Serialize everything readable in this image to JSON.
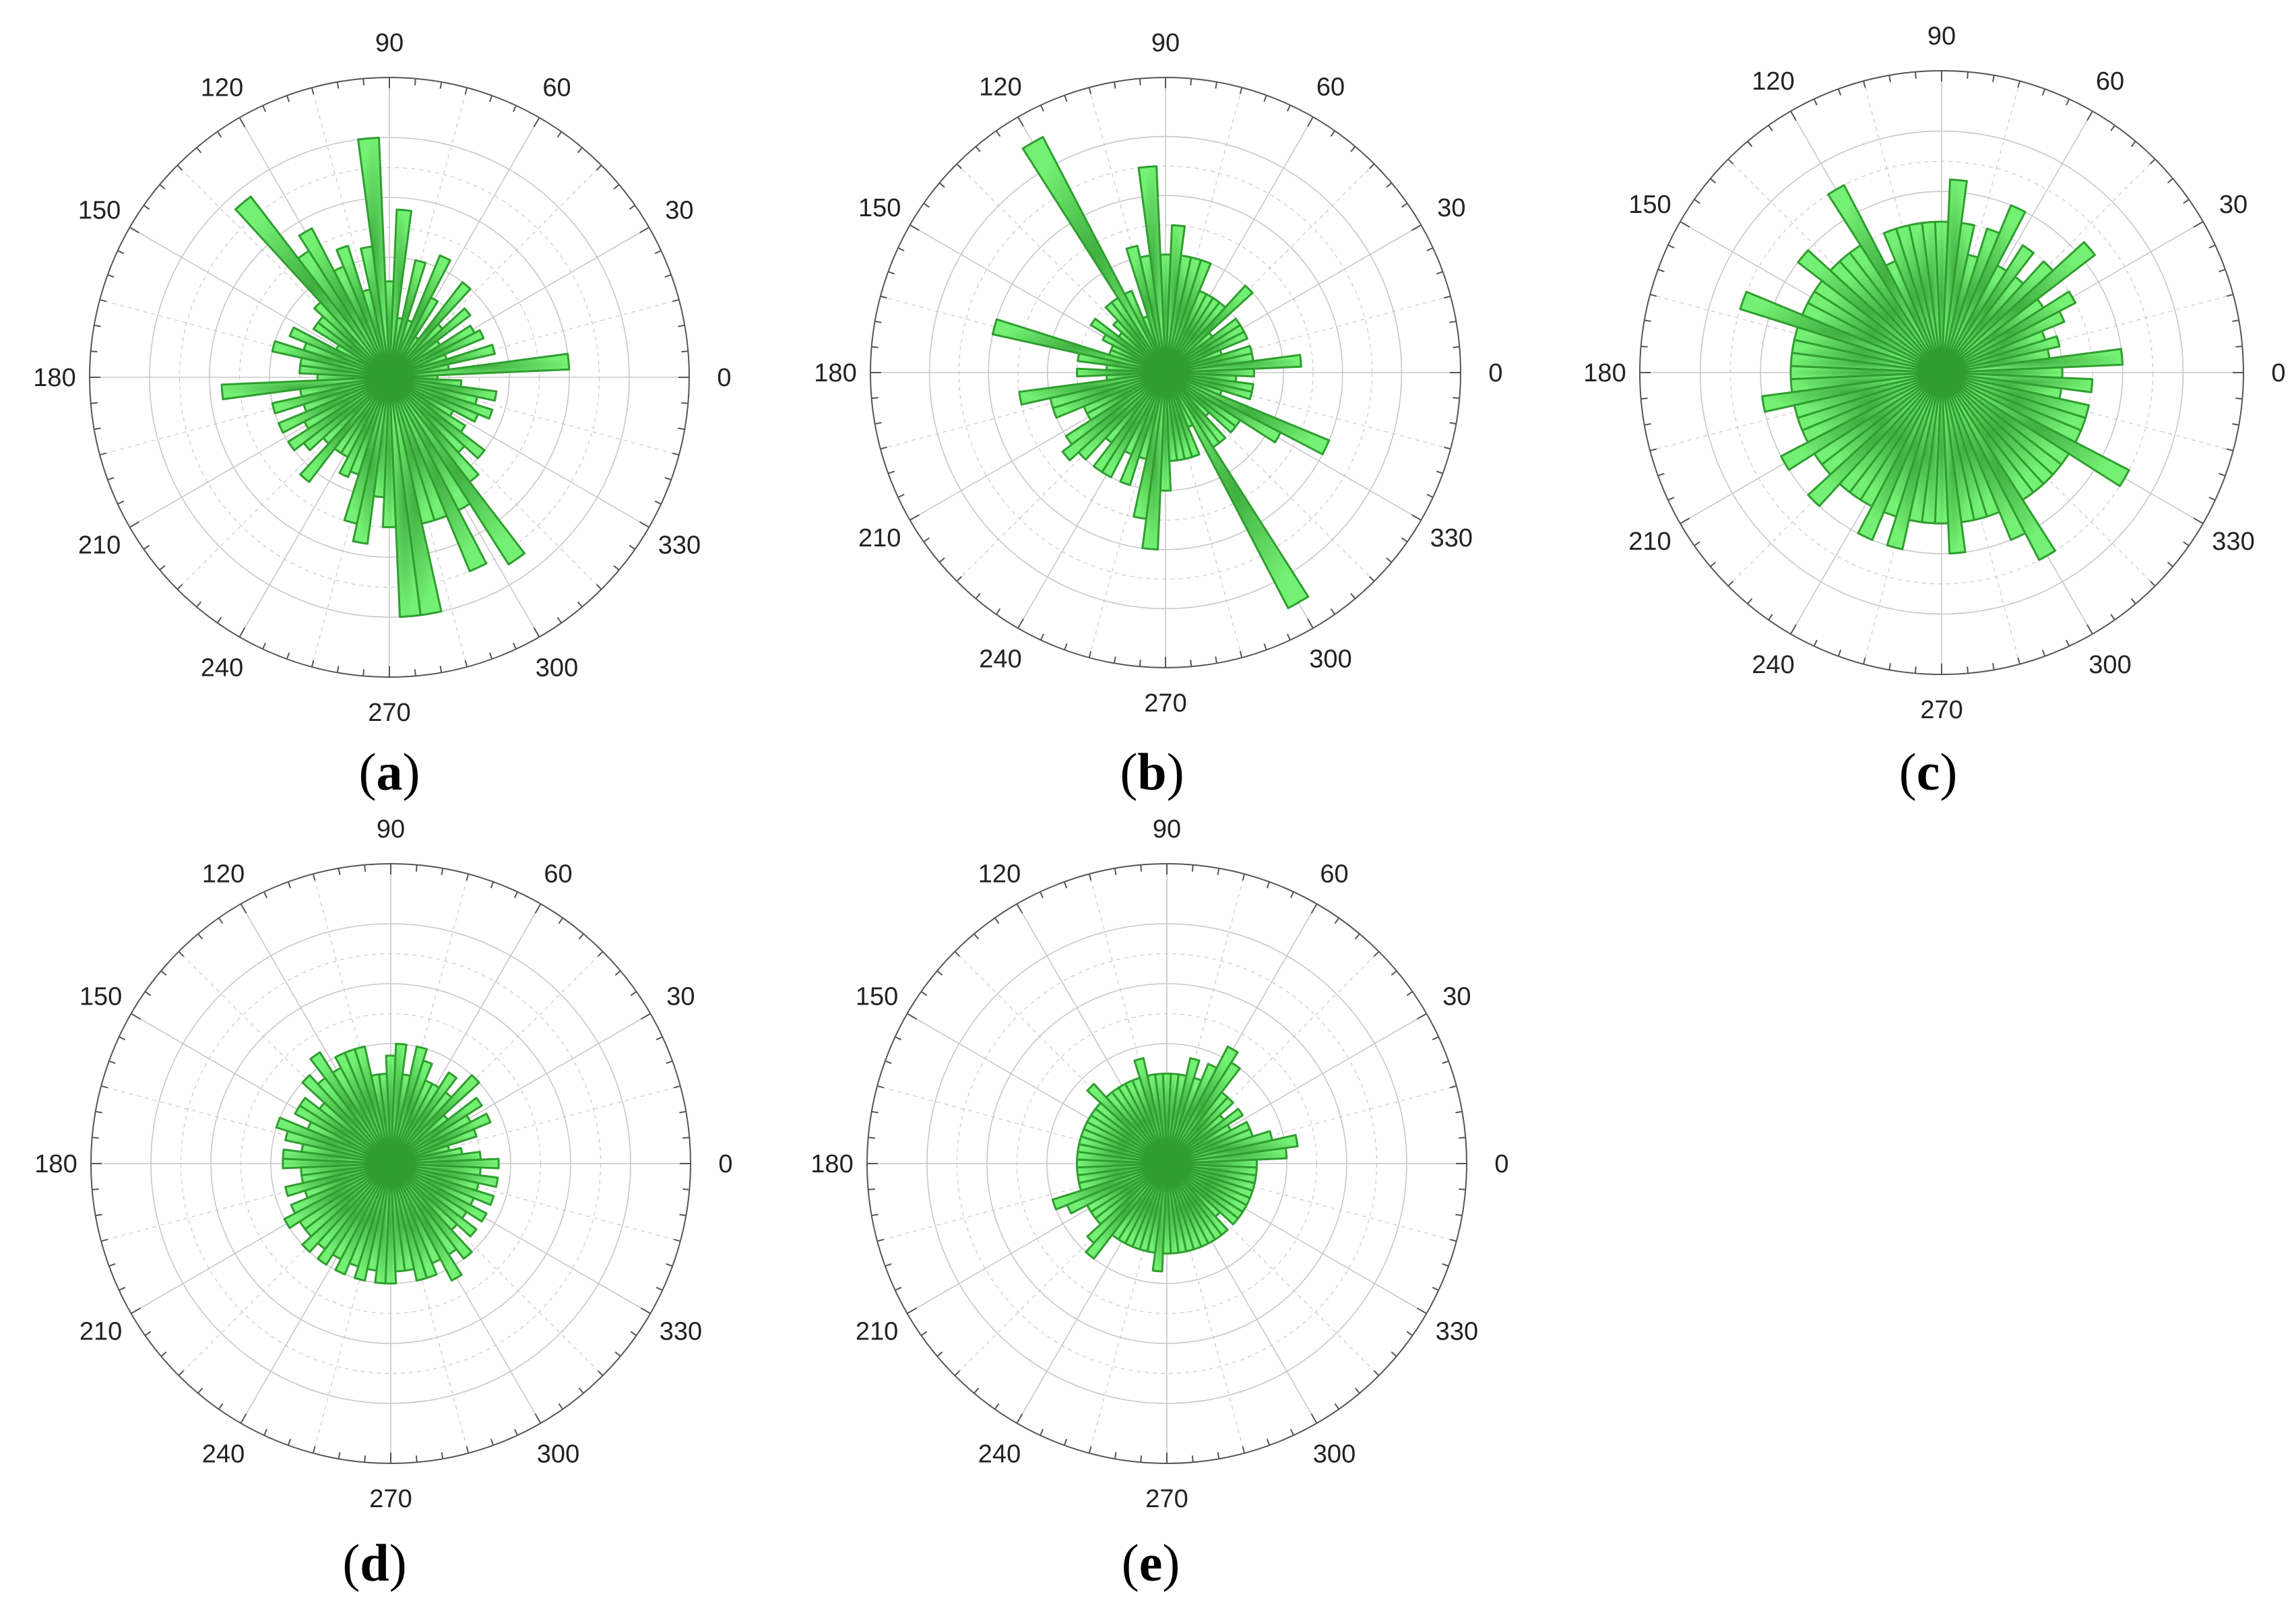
{
  "figure": {
    "panels": [
      "a",
      "b",
      "c",
      "d",
      "e"
    ]
  },
  "colors": {
    "fill_center": "#3fae3f",
    "fill_edge": "#74f074",
    "stroke": "#2f9e2f",
    "grid": "#c8c8c8",
    "axis": "#555555"
  },
  "chart_data": [
    {
      "type": "polar-bar",
      "panel_label": "a",
      "angle_ticks": [
        "0",
        "30",
        "60",
        "90",
        "120",
        "150",
        "180",
        "210",
        "240",
        "270",
        "300",
        "330"
      ],
      "bin_width_deg": 5,
      "rmax": 5,
      "angles": [
        0,
        5,
        10,
        15,
        20,
        25,
        30,
        35,
        40,
        45,
        50,
        55,
        60,
        65,
        70,
        75,
        80,
        85,
        90,
        95,
        100,
        105,
        110,
        115,
        120,
        125,
        130,
        135,
        140,
        145,
        150,
        155,
        160,
        165,
        170,
        175,
        180,
        185,
        190,
        195,
        200,
        205,
        210,
        215,
        220,
        225,
        230,
        235,
        240,
        245,
        250,
        255,
        260,
        265,
        270,
        275,
        280,
        285,
        290,
        295,
        300,
        305,
        310,
        315,
        320,
        325,
        330,
        335,
        340,
        345,
        350,
        355
      ],
      "values": [
        0.8,
        3.0,
        1.0,
        1.8,
        1.0,
        1.7,
        1.6,
        1.0,
        1.7,
        1.2,
        2.0,
        0.8,
        1.5,
        2.2,
        1.0,
        2.0,
        1.0,
        2.8,
        1.6,
        4.0,
        2.2,
        1.5,
        2.3,
        2.0,
        2.8,
        2.5,
        3.8,
        1.7,
        1.5,
        1.5,
        1.0,
        1.8,
        1.5,
        2.0,
        1.5,
        1.5,
        1.2,
        2.8,
        1.5,
        2.0,
        1.5,
        2.0,
        1.6,
        2.0,
        1.8,
        1.5,
        2.2,
        1.5,
        1.5,
        1.8,
        1.7,
        2.5,
        2.8,
        2.0,
        2.5,
        4.0,
        4.0,
        2.5,
        2.5,
        3.5,
        2.5,
        3.7,
        2.2,
        1.7,
        2.0,
        1.5,
        1.2,
        1.6,
        1.8,
        1.5,
        1.8,
        1.2
      ]
    },
    {
      "type": "polar-bar",
      "panel_label": "b",
      "angle_ticks": [
        "0",
        "30",
        "60",
        "90",
        "120",
        "150",
        "180",
        "210",
        "240",
        "270",
        "300",
        "330"
      ],
      "bin_width_deg": 5,
      "rmax": 5,
      "angles": [
        0,
        5,
        10,
        15,
        20,
        25,
        30,
        35,
        40,
        45,
        50,
        55,
        60,
        65,
        70,
        75,
        80,
        85,
        90,
        95,
        100,
        105,
        110,
        115,
        120,
        125,
        130,
        135,
        140,
        145,
        150,
        155,
        160,
        165,
        170,
        175,
        180,
        185,
        190,
        195,
        200,
        205,
        210,
        215,
        220,
        225,
        230,
        235,
        240,
        245,
        250,
        255,
        260,
        265,
        270,
        275,
        280,
        285,
        290,
        295,
        300,
        305,
        310,
        315,
        320,
        325,
        330,
        335,
        340,
        345,
        350,
        355
      ],
      "values": [
        1.5,
        2.3,
        1.5,
        1.5,
        1.0,
        1.5,
        1.5,
        1.5,
        1.0,
        2.0,
        1.5,
        1.5,
        1.5,
        1.5,
        2.0,
        2.0,
        2.0,
        2.5,
        2.0,
        3.5,
        2.0,
        2.2,
        1.0,
        1.5,
        4.5,
        1.5,
        1.5,
        1.2,
        1.0,
        1.5,
        1.2,
        1.0,
        1.0,
        3.0,
        1.5,
        1.0,
        1.5,
        1.0,
        2.5,
        2.0,
        2.0,
        1.5,
        1.5,
        2.0,
        2.2,
        2.0,
        1.5,
        2.0,
        2.0,
        1.5,
        2.0,
        1.5,
        2.5,
        3.0,
        2.0,
        1.5,
        1.5,
        1.5,
        1.5,
        1.0,
        4.5,
        1.5,
        1.5,
        1.0,
        1.5,
        1.5,
        2.2,
        3.0,
        1.0,
        1.5,
        1.5,
        1.2
      ]
    },
    {
      "type": "polar-bar",
      "panel_label": "c",
      "angle_ticks": [
        "0",
        "30",
        "60",
        "90",
        "120",
        "150",
        "180",
        "210",
        "240",
        "270",
        "300",
        "330"
      ],
      "bin_width_deg": 5,
      "rmax": 5,
      "angles": [
        0,
        5,
        10,
        15,
        20,
        25,
        30,
        35,
        40,
        45,
        50,
        55,
        60,
        65,
        70,
        75,
        80,
        85,
        90,
        95,
        100,
        105,
        110,
        115,
        120,
        125,
        130,
        135,
        140,
        145,
        150,
        155,
        160,
        165,
        170,
        175,
        180,
        185,
        190,
        195,
        200,
        205,
        210,
        215,
        220,
        225,
        230,
        235,
        240,
        245,
        250,
        255,
        260,
        265,
        270,
        275,
        280,
        285,
        290,
        295,
        300,
        305,
        310,
        315,
        320,
        325,
        330,
        335,
        340,
        345,
        350,
        355
      ],
      "values": [
        2.0,
        3.0,
        1.8,
        2.0,
        1.8,
        2.2,
        2.5,
        2.0,
        3.2,
        2.5,
        2.0,
        2.5,
        2.0,
        3.0,
        2.5,
        2.0,
        2.5,
        3.2,
        2.5,
        2.5,
        2.5,
        2.5,
        2.5,
        2.0,
        3.5,
        2.5,
        2.5,
        2.5,
        3.0,
        2.5,
        2.5,
        2.5,
        3.5,
        2.5,
        2.5,
        2.5,
        2.5,
        2.5,
        3.0,
        2.5,
        2.5,
        2.5,
        3.0,
        2.5,
        2.5,
        3.0,
        2.5,
        2.5,
        2.5,
        3.0,
        2.5,
        3.0,
        2.5,
        2.5,
        2.5,
        3.0,
        2.5,
        2.5,
        2.5,
        3.0,
        3.5,
        2.5,
        2.5,
        2.5,
        2.5,
        2.5,
        3.5,
        2.5,
        2.5,
        2.5,
        2.0,
        2.5
      ]
    },
    {
      "type": "polar-bar",
      "panel_label": "d",
      "angle_ticks": [
        "0",
        "30",
        "60",
        "90",
        "120",
        "150",
        "180",
        "210",
        "240",
        "270",
        "300",
        "330"
      ],
      "bin_width_deg": 5,
      "rmax": 5,
      "angles": [
        0,
        5,
        10,
        15,
        20,
        25,
        30,
        35,
        40,
        45,
        50,
        55,
        60,
        65,
        70,
        75,
        80,
        85,
        90,
        95,
        100,
        105,
        110,
        115,
        120,
        125,
        130,
        135,
        140,
        145,
        150,
        155,
        160,
        165,
        170,
        175,
        180,
        185,
        190,
        195,
        200,
        205,
        210,
        215,
        220,
        225,
        230,
        235,
        240,
        245,
        250,
        255,
        260,
        265,
        270,
        275,
        280,
        285,
        290,
        295,
        300,
        305,
        310,
        315,
        320,
        325,
        330,
        335,
        340,
        345,
        350,
        355
      ],
      "values": [
        1.8,
        1.5,
        1.2,
        1.0,
        1.5,
        1.8,
        1.5,
        1.8,
        1.2,
        2.0,
        1.5,
        1.8,
        1.5,
        1.5,
        1.8,
        2.0,
        1.5,
        2.0,
        1.8,
        1.5,
        1.5,
        2.0,
        2.0,
        2.0,
        1.8,
        2.2,
        1.8,
        2.0,
        1.5,
        1.8,
        1.8,
        1.5,
        2.0,
        1.8,
        1.5,
        1.8,
        1.8,
        1.5,
        1.5,
        1.8,
        1.5,
        1.8,
        2.0,
        1.8,
        1.8,
        2.0,
        1.8,
        2.0,
        1.8,
        2.0,
        1.8,
        2.0,
        1.8,
        2.0,
        2.0,
        1.8,
        1.8,
        2.0,
        2.0,
        1.8,
        2.2,
        1.8,
        2.0,
        1.5,
        1.8,
        1.5,
        1.8,
        1.5,
        1.8,
        1.5,
        1.8,
        1.5
      ]
    },
    {
      "type": "polar-bar",
      "panel_label": "e",
      "angle_ticks": [
        "0",
        "30",
        "60",
        "90",
        "120",
        "150",
        "180",
        "210",
        "240",
        "270",
        "300",
        "330"
      ],
      "bin_width_deg": 5,
      "rmax": 5,
      "angles": [
        0,
        5,
        10,
        15,
        20,
        25,
        30,
        35,
        40,
        45,
        50,
        55,
        60,
        65,
        70,
        75,
        80,
        85,
        90,
        95,
        100,
        105,
        110,
        115,
        120,
        125,
        130,
        135,
        140,
        145,
        150,
        155,
        160,
        165,
        170,
        175,
        180,
        185,
        190,
        195,
        200,
        205,
        210,
        215,
        220,
        225,
        230,
        235,
        240,
        245,
        250,
        255,
        260,
        265,
        270,
        275,
        280,
        285,
        290,
        295,
        300,
        305,
        310,
        315,
        320,
        325,
        330,
        335,
        340,
        345,
        350,
        355
      ],
      "values": [
        1.5,
        2.0,
        2.2,
        1.8,
        1.5,
        1.5,
        1.2,
        1.5,
        1.2,
        1.5,
        1.5,
        2.0,
        2.2,
        1.8,
        1.5,
        1.8,
        1.5,
        1.5,
        1.5,
        1.5,
        1.5,
        1.8,
        1.5,
        1.5,
        1.5,
        1.5,
        1.5,
        1.8,
        1.5,
        1.5,
        1.5,
        1.5,
        1.5,
        1.5,
        1.5,
        1.5,
        1.5,
        1.5,
        1.5,
        1.5,
        2.0,
        1.8,
        1.5,
        1.5,
        1.5,
        1.8,
        2.0,
        1.5,
        1.5,
        1.5,
        1.5,
        1.5,
        1.5,
        1.8,
        1.5,
        1.5,
        1.5,
        1.5,
        1.5,
        1.5,
        1.5,
        1.5,
        1.5,
        1.2,
        1.5,
        1.5,
        1.5,
        1.5,
        1.5,
        1.5,
        1.5,
        1.5
      ]
    }
  ]
}
